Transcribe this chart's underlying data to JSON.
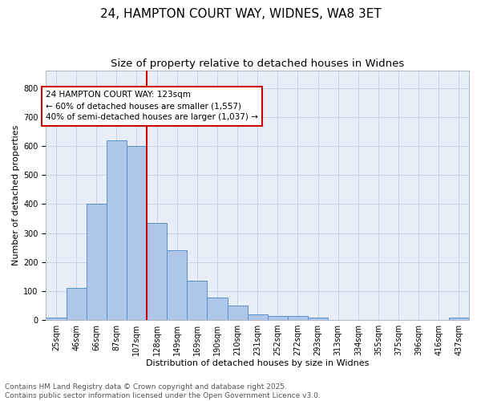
{
  "title_line1": "24, HAMPTON COURT WAY, WIDNES, WA8 3ET",
  "title_line2": "Size of property relative to detached houses in Widnes",
  "xlabel": "Distribution of detached houses by size in Widnes",
  "ylabel": "Number of detached properties",
  "categories": [
    "25sqm",
    "46sqm",
    "66sqm",
    "87sqm",
    "107sqm",
    "128sqm",
    "149sqm",
    "169sqm",
    "190sqm",
    "210sqm",
    "231sqm",
    "252sqm",
    "272sqm",
    "293sqm",
    "313sqm",
    "334sqm",
    "355sqm",
    "375sqm",
    "396sqm",
    "416sqm",
    "437sqm"
  ],
  "values": [
    7,
    110,
    400,
    620,
    600,
    335,
    240,
    135,
    78,
    50,
    20,
    15,
    15,
    8,
    0,
    0,
    0,
    0,
    0,
    0,
    8
  ],
  "bar_color": "#aec6e8",
  "bar_edge_color": "#5a90c8",
  "vline_x": 4.5,
  "vline_color": "#cc0000",
  "vline_label_title": "24 HAMPTON COURT WAY: 123sqm",
  "vline_label_line2": "← 60% of detached houses are smaller (1,557)",
  "vline_label_line3": "40% of semi-detached houses are larger (1,037) →",
  "box_facecolor": "white",
  "box_edgecolor": "#cc0000",
  "ylim": [
    0,
    860
  ],
  "yticks": [
    0,
    100,
    200,
    300,
    400,
    500,
    600,
    700,
    800
  ],
  "grid_color": "#c8d4e8",
  "background_color": "#e8eef8",
  "footnote_line1": "Contains HM Land Registry data © Crown copyright and database right 2025.",
  "footnote_line2": "Contains public sector information licensed under the Open Government Licence v3.0.",
  "title_fontsize": 11,
  "subtitle_fontsize": 9.5,
  "axis_label_fontsize": 8,
  "tick_fontsize": 7,
  "annotation_fontsize": 7.5,
  "footnote_fontsize": 6.5
}
